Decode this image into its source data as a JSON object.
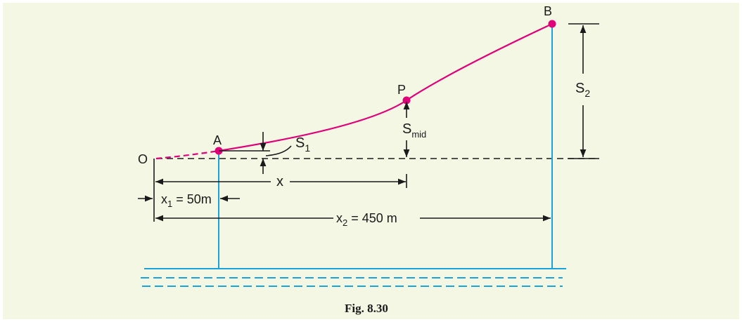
{
  "caption": "Fig. 8.30",
  "points": {
    "origin": "O",
    "a": "A",
    "p": "P",
    "b": "B"
  },
  "labels": {
    "s1": {
      "main": "S",
      "sub": "1"
    },
    "s2": {
      "main": "S",
      "sub": "2"
    },
    "smid": {
      "main": "S",
      "sub": "mid"
    },
    "x": "x",
    "x1": {
      "main": "x",
      "sub": "1",
      "rest": " = 50m"
    },
    "x2": {
      "main": "x",
      "sub": "2",
      "rest": " = 450 m"
    }
  },
  "colors": {
    "background": "#f4f7e4",
    "cable": "#e0007a",
    "tower": "#1aa3d9",
    "water": "#1aa3d9",
    "dimension": "#1a1a1a"
  }
}
